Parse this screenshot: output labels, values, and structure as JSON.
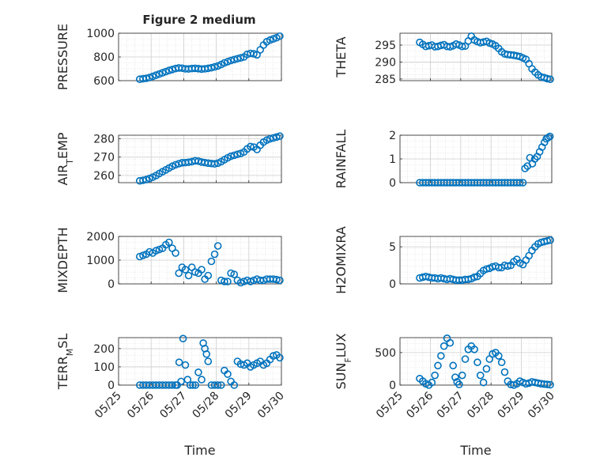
{
  "title": "Figure 2 medium",
  "chart_data": [
    {
      "type": "scatter",
      "ylabel": "PRESSURE",
      "ylabel_sub": "",
      "ylabel_tail": "",
      "xlim": [
        0,
        5
      ],
      "ylim": [
        600,
        1000
      ],
      "yticks": [
        600,
        800,
        1000
      ],
      "yticklabels": [
        "600",
        "800",
        "1000"
      ],
      "grid": true,
      "series": [
        {
          "marker": "circle-open",
          "color": "#0072BD",
          "x": [
            0.65,
            0.75,
            0.85,
            0.95,
            1.05,
            1.15,
            1.25,
            1.35,
            1.45,
            1.55,
            1.65,
            1.75,
            1.85,
            1.95,
            2.05,
            2.15,
            2.25,
            2.35,
            2.45,
            2.55,
            2.65,
            2.75,
            2.85,
            2.95,
            3.05,
            3.15,
            3.25,
            3.35,
            3.45,
            3.55,
            3.65,
            3.75,
            3.85,
            3.95,
            4.05,
            4.15,
            4.25,
            4.35,
            4.45,
            4.55,
            4.65,
            4.75,
            4.85,
            4.95
          ],
          "y": [
            612,
            616,
            620,
            626,
            636,
            646,
            656,
            666,
            676,
            686,
            694,
            702,
            707,
            705,
            700,
            699,
            702,
            704,
            701,
            698,
            700,
            704,
            709,
            716,
            724,
            736,
            750,
            760,
            770,
            778,
            785,
            792,
            800,
            822,
            830,
            826,
            818,
            860,
            900,
            928,
            942,
            952,
            962,
            975
          ]
        }
      ]
    },
    {
      "type": "scatter",
      "ylabel": "THETA",
      "ylabel_sub": "",
      "ylabel_tail": "",
      "xlim": [
        0,
        5
      ],
      "ylim": [
        284.5,
        298.5
      ],
      "yticks": [
        285,
        290,
        295
      ],
      "yticklabels": [
        "285",
        "290",
        "295"
      ],
      "grid": true,
      "series": [
        {
          "marker": "circle-open",
          "color": "#0072BD",
          "x": [
            0.65,
            0.75,
            0.85,
            0.95,
            1.05,
            1.15,
            1.25,
            1.35,
            1.45,
            1.55,
            1.65,
            1.75,
            1.85,
            1.95,
            2.05,
            2.15,
            2.25,
            2.35,
            2.45,
            2.55,
            2.65,
            2.75,
            2.85,
            2.95,
            3.05,
            3.15,
            3.25,
            3.35,
            3.45,
            3.55,
            3.65,
            3.75,
            3.85,
            3.95,
            4.05,
            4.15,
            4.25,
            4.35,
            4.45,
            4.55,
            4.65,
            4.75,
            4.85,
            4.95
          ],
          "y": [
            295.8,
            295.2,
            294.6,
            294.8,
            295.0,
            294.5,
            294.6,
            294.9,
            295.1,
            294.6,
            294.5,
            294.8,
            295.3,
            295.0,
            294.6,
            294.7,
            296.2,
            297.6,
            296.5,
            296.0,
            295.7,
            295.9,
            296.1,
            295.6,
            295.3,
            294.8,
            294.0,
            293.0,
            292.4,
            292.2,
            292.1,
            292.0,
            291.8,
            291.6,
            291.2,
            290.8,
            289.5,
            288.0,
            287.0,
            286.2,
            285.6,
            285.4,
            285.1,
            284.9
          ]
        }
      ]
    },
    {
      "type": "scatter",
      "ylabel": "AIR",
      "ylabel_sub": "T",
      "ylabel_tail": "EMP",
      "xlim": [
        0,
        5
      ],
      "ylim": [
        256,
        282
      ],
      "yticks": [
        260,
        270,
        280
      ],
      "yticklabels": [
        "260",
        "270",
        "280"
      ],
      "grid": true,
      "series": [
        {
          "marker": "circle-open",
          "color": "#0072BD",
          "x": [
            0.65,
            0.75,
            0.85,
            0.95,
            1.05,
            1.15,
            1.25,
            1.35,
            1.45,
            1.55,
            1.65,
            1.75,
            1.85,
            1.95,
            2.05,
            2.15,
            2.25,
            2.35,
            2.45,
            2.55,
            2.65,
            2.75,
            2.85,
            2.95,
            3.05,
            3.15,
            3.25,
            3.35,
            3.45,
            3.55,
            3.65,
            3.75,
            3.85,
            3.95,
            4.05,
            4.15,
            4.25,
            4.35,
            4.45,
            4.55,
            4.65,
            4.75,
            4.85,
            4.95
          ],
          "y": [
            257.0,
            257.3,
            257.7,
            258.3,
            259.0,
            259.9,
            261.0,
            262.0,
            263.0,
            264.0,
            265.0,
            265.8,
            266.4,
            266.9,
            267.0,
            267.2,
            267.5,
            268.0,
            267.8,
            267.3,
            267.0,
            266.7,
            266.5,
            266.3,
            266.7,
            267.5,
            268.6,
            269.6,
            270.5,
            271.0,
            271.5,
            272.0,
            272.8,
            274.5,
            275.8,
            275.5,
            274.2,
            276.5,
            278.2,
            279.3,
            280.0,
            280.5,
            281.0,
            281.5
          ]
        }
      ]
    },
    {
      "type": "scatter",
      "ylabel": "RAINFALL",
      "ylabel_sub": "",
      "ylabel_tail": "",
      "xlim": [
        0,
        5
      ],
      "ylim": [
        0,
        2
      ],
      "yticks": [
        0,
        1,
        2
      ],
      "yticklabels": [
        "0",
        "1",
        "2"
      ],
      "grid": true,
      "series": [
        {
          "marker": "circle-open",
          "color": "#0072BD",
          "x": [
            0.65,
            0.75,
            0.85,
            0.95,
            1.05,
            1.15,
            1.25,
            1.35,
            1.45,
            1.55,
            1.65,
            1.75,
            1.85,
            1.95,
            2.05,
            2.15,
            2.25,
            2.35,
            2.45,
            2.55,
            2.65,
            2.75,
            2.85,
            2.95,
            3.05,
            3.15,
            3.25,
            3.35,
            3.45,
            3.55,
            3.65,
            3.75,
            3.85,
            3.95,
            4.05,
            4.12,
            4.2,
            4.28,
            4.36,
            4.44,
            4.52,
            4.6,
            4.68,
            4.76,
            4.82,
            4.88,
            4.94
          ],
          "y": [
            0,
            0,
            0,
            0,
            0,
            0,
            0,
            0,
            0,
            0,
            0,
            0,
            0,
            0,
            0,
            0,
            0,
            0,
            0,
            0,
            0,
            0,
            0,
            0,
            0,
            0,
            0,
            0,
            0,
            0,
            0,
            0,
            0,
            0,
            0,
            0.6,
            0.7,
            1.05,
            0.8,
            1.0,
            1.1,
            1.3,
            1.5,
            1.7,
            1.85,
            1.9,
            1.95
          ]
        }
      ]
    },
    {
      "type": "scatter",
      "ylabel": "MIXDEPTH",
      "ylabel_sub": "",
      "ylabel_tail": "",
      "xlim": [
        0,
        5
      ],
      "ylim": [
        0,
        2000
      ],
      "yticks": [
        0,
        1000,
        2000
      ],
      "yticklabels": [
        "0",
        "1000",
        "2000"
      ],
      "grid": true,
      "series": [
        {
          "marker": "circle-open",
          "color": "#0072BD",
          "x": [
            0.65,
            0.75,
            0.85,
            0.95,
            1.05,
            1.15,
            1.25,
            1.35,
            1.45,
            1.55,
            1.65,
            1.75,
            1.85,
            1.95,
            2.05,
            2.15,
            2.25,
            2.35,
            2.45,
            2.55,
            2.65,
            2.75,
            2.85,
            2.95,
            3.05,
            3.15,
            3.25,
            3.35,
            3.45,
            3.55,
            3.65,
            3.75,
            3.85,
            3.95,
            4.05,
            4.15,
            4.25,
            4.35,
            4.45,
            4.55,
            4.65,
            4.75,
            4.85,
            4.95
          ],
          "y": [
            1150,
            1200,
            1250,
            1350,
            1300,
            1400,
            1450,
            1500,
            1650,
            1750,
            1500,
            1300,
            450,
            700,
            600,
            350,
            700,
            500,
            450,
            600,
            200,
            350,
            950,
            1250,
            1600,
            150,
            100,
            100,
            450,
            400,
            150,
            50,
            100,
            150,
            100,
            150,
            200,
            150,
            150,
            200,
            200,
            200,
            180,
            150
          ]
        }
      ]
    },
    {
      "type": "scatter",
      "ylabel": "H2OMIXRA",
      "ylabel_sub": "",
      "ylabel_tail": "",
      "xlim": [
        0,
        5
      ],
      "ylim": [
        0,
        6.4
      ],
      "yticks": [
        0,
        5
      ],
      "yticklabels": [
        "0",
        "5"
      ],
      "grid": true,
      "series": [
        {
          "marker": "circle-open",
          "color": "#0072BD",
          "x": [
            0.65,
            0.75,
            0.85,
            0.95,
            1.05,
            1.15,
            1.25,
            1.35,
            1.45,
            1.55,
            1.65,
            1.75,
            1.85,
            1.95,
            2.05,
            2.15,
            2.25,
            2.35,
            2.45,
            2.55,
            2.65,
            2.75,
            2.85,
            2.95,
            3.05,
            3.15,
            3.25,
            3.35,
            3.45,
            3.55,
            3.65,
            3.75,
            3.85,
            3.95,
            4.05,
            4.15,
            4.25,
            4.35,
            4.45,
            4.55,
            4.65,
            4.75,
            4.85,
            4.95
          ],
          "y": [
            0.8,
            0.9,
            1.0,
            0.9,
            0.8,
            0.8,
            0.7,
            0.8,
            0.7,
            0.6,
            0.7,
            0.6,
            0.5,
            0.5,
            0.5,
            0.6,
            0.6,
            0.7,
            0.9,
            1.0,
            1.4,
            1.8,
            2.0,
            2.1,
            2.3,
            2.4,
            2.2,
            2.2,
            2.5,
            2.4,
            2.5,
            3.0,
            3.3,
            2.8,
            2.6,
            3.2,
            3.8,
            4.5,
            5.0,
            5.4,
            5.6,
            5.7,
            5.8,
            5.9
          ]
        }
      ]
    },
    {
      "type": "scatter",
      "ylabel": "TERR",
      "ylabel_sub": "M",
      "ylabel_tail": "SL",
      "xlim": [
        0,
        5
      ],
      "ylim": [
        0,
        260
      ],
      "yticks": [
        0,
        100,
        200
      ],
      "yticklabels": [
        "0",
        "100",
        "200"
      ],
      "xticks": [
        0,
        1,
        2,
        3,
        4,
        5
      ],
      "xticklabels": [
        "05/25",
        "05/26",
        "05/27",
        "05/28",
        "05/29",
        "05/30"
      ],
      "xlabel": "Time",
      "grid": true,
      "series": [
        {
          "marker": "circle-open",
          "color": "#0072BD",
          "x": [
            0.65,
            0.75,
            0.85,
            0.95,
            1.05,
            1.15,
            1.25,
            1.35,
            1.45,
            1.55,
            1.65,
            1.75,
            1.8,
            1.86,
            1.92,
            1.98,
            2.05,
            2.12,
            2.2,
            2.28,
            2.36,
            2.45,
            2.55,
            2.6,
            2.65,
            2.7,
            2.75,
            2.85,
            2.95,
            3.05,
            3.15,
            3.25,
            3.35,
            3.45,
            3.55,
            3.65,
            3.75,
            3.85,
            3.95,
            4.05,
            4.15,
            4.25,
            4.35,
            4.45,
            4.55,
            4.65,
            4.75,
            4.85,
            4.95
          ],
          "y": [
            0,
            0,
            0,
            0,
            0,
            0,
            0,
            0,
            0,
            0,
            0,
            0,
            0,
            125,
            20,
            255,
            110,
            30,
            0,
            0,
            0,
            70,
            30,
            230,
            200,
            170,
            130,
            0,
            0,
            0,
            0,
            80,
            60,
            20,
            0,
            130,
            115,
            110,
            120,
            100,
            110,
            120,
            130,
            110,
            120,
            140,
            160,
            165,
            150
          ]
        }
      ]
    },
    {
      "type": "scatter",
      "ylabel": "SUN",
      "ylabel_sub": "F",
      "ylabel_tail": "LUX",
      "xlim": [
        0,
        5
      ],
      "ylim": [
        0,
        730
      ],
      "yticks": [
        0,
        500
      ],
      "yticklabels": [
        "0",
        "500"
      ],
      "xticks": [
        0,
        1,
        2,
        3,
        4,
        5
      ],
      "xticklabels": [
        "05/25",
        "05/26",
        "05/27",
        "05/28",
        "05/29",
        "05/30"
      ],
      "xlabel": "Time",
      "grid": true,
      "series": [
        {
          "marker": "circle-open",
          "color": "#0072BD",
          "x": [
            0.65,
            0.75,
            0.85,
            0.95,
            1.05,
            1.15,
            1.25,
            1.35,
            1.45,
            1.55,
            1.65,
            1.75,
            1.82,
            1.88,
            1.95,
            2.05,
            2.15,
            2.25,
            2.35,
            2.45,
            2.55,
            2.65,
            2.75,
            2.85,
            2.95,
            3.05,
            3.15,
            3.25,
            3.35,
            3.45,
            3.55,
            3.65,
            3.75,
            3.85,
            3.95,
            4.05,
            4.15,
            4.25,
            4.35,
            4.45,
            4.55,
            4.65,
            4.75,
            4.85,
            4.95
          ],
          "y": [
            100,
            60,
            20,
            0,
            40,
            150,
            300,
            450,
            600,
            720,
            650,
            300,
            120,
            50,
            10,
            150,
            400,
            550,
            600,
            550,
            350,
            150,
            40,
            250,
            400,
            480,
            500,
            450,
            350,
            200,
            60,
            10,
            0,
            20,
            60,
            40,
            20,
            30,
            50,
            40,
            30,
            20,
            15,
            10,
            5
          ]
        }
      ]
    }
  ]
}
